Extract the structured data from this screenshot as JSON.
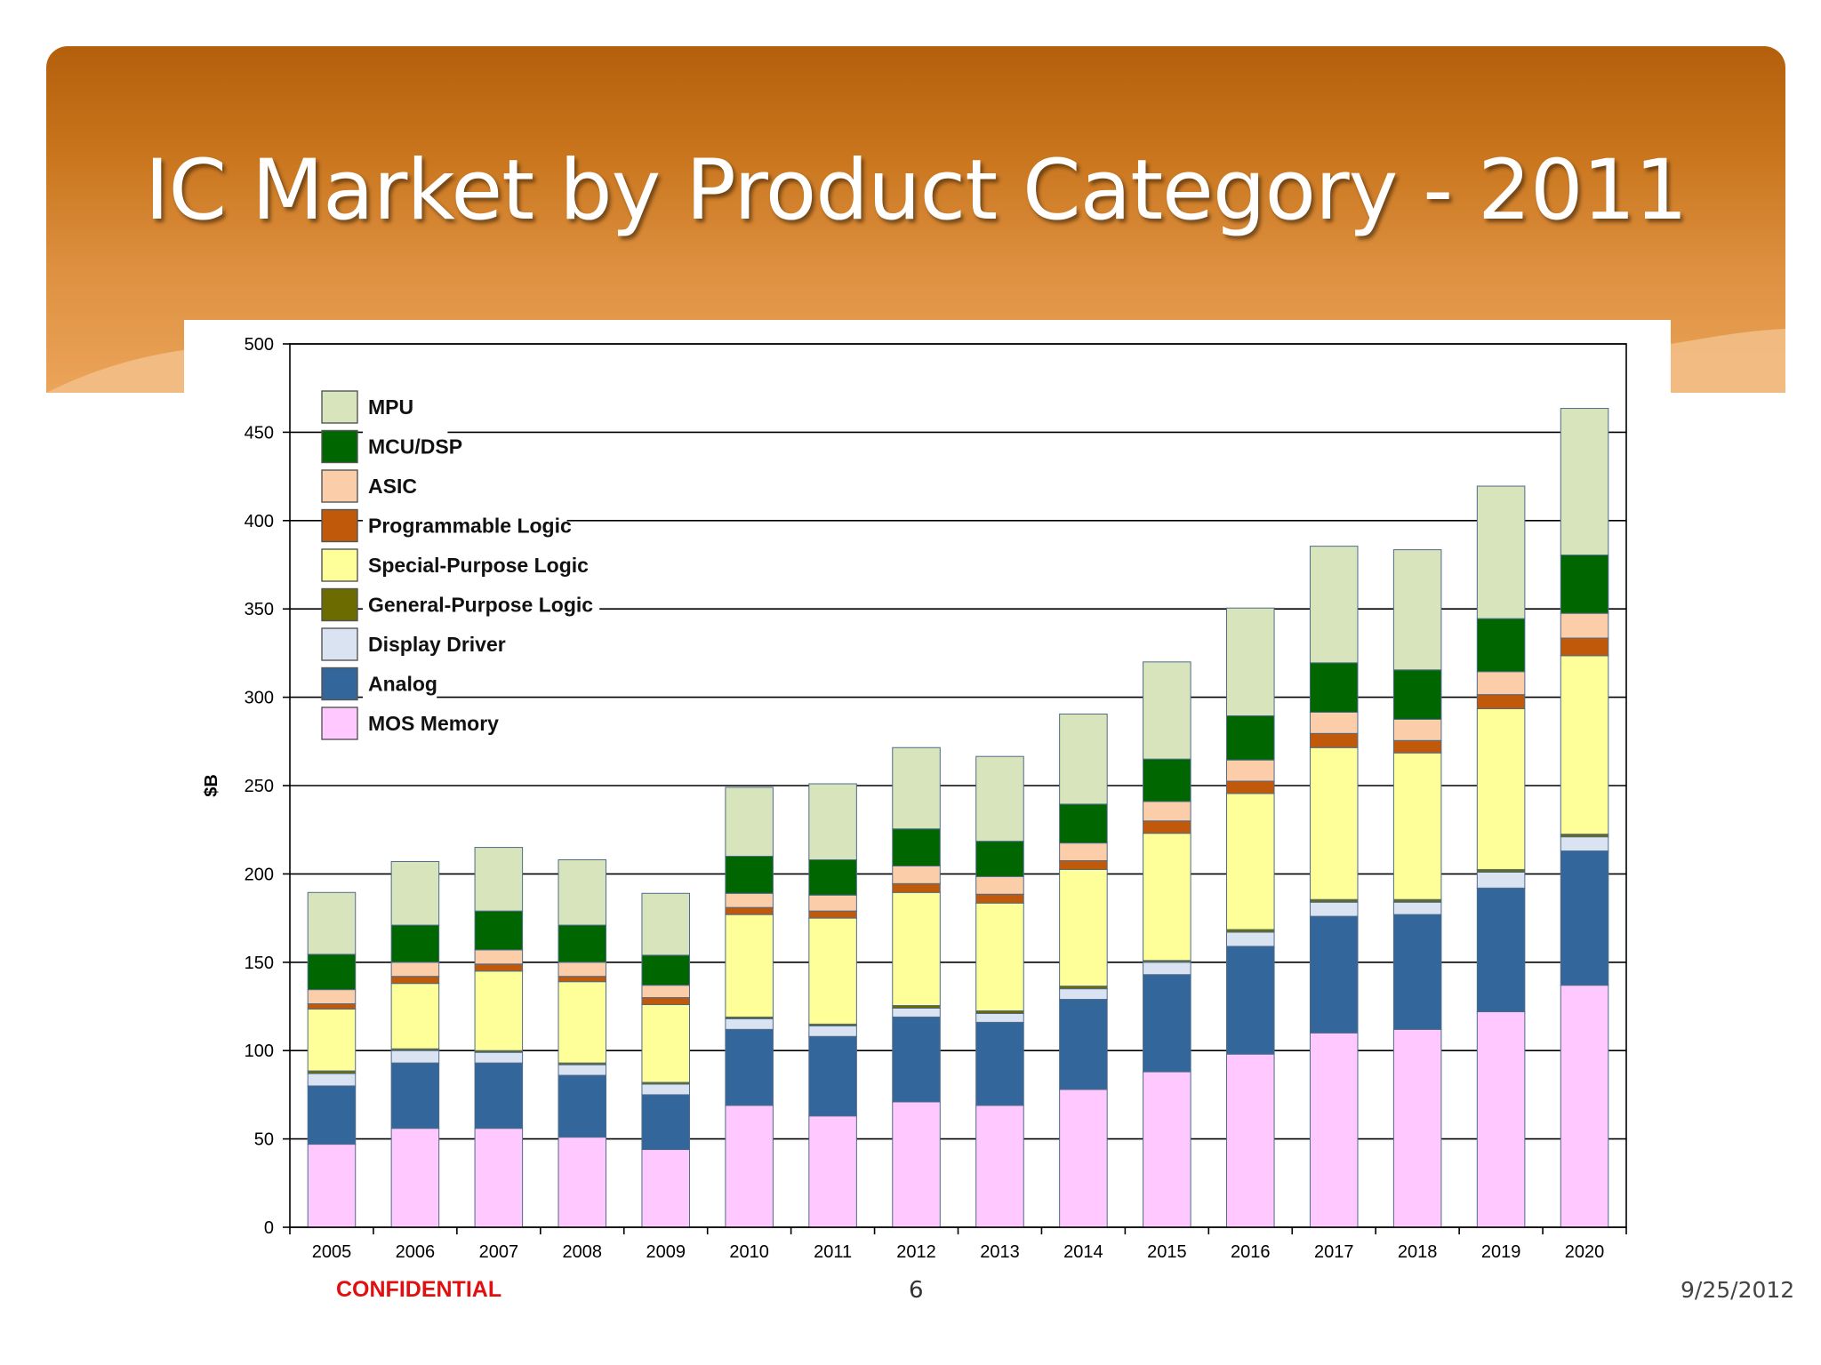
{
  "slide": {
    "title": "IC Market by Product Category - 2011",
    "footer_left": "CONFIDENTIAL",
    "page_number": "6",
    "date": "9/25/2012"
  },
  "colors": {
    "banner_top": "#b45f0c",
    "banner_bottom": "#eba45a",
    "confidential": "#e01010"
  },
  "chart_data": {
    "type": "bar",
    "stacked": true,
    "title": "",
    "xlabel": "",
    "ylabel": "$B",
    "ylim": [
      0,
      500
    ],
    "yticks": [
      0,
      50,
      100,
      150,
      200,
      250,
      300,
      350,
      400,
      450,
      500
    ],
    "grid": "horizontal",
    "legend_position": "top-left",
    "categories": [
      "2005",
      "2006",
      "2007",
      "2008",
      "2009",
      "2010",
      "2011",
      "2012",
      "2013",
      "2014",
      "2015",
      "2016",
      "2017",
      "2018",
      "2019",
      "2020"
    ],
    "series": [
      {
        "name": "MOS Memory",
        "color": "#ffc8ff",
        "values": [
          47,
          56,
          56,
          51,
          44,
          69,
          63,
          71,
          69,
          78,
          88,
          98,
          110,
          112,
          122,
          137
        ]
      },
      {
        "name": "Analog",
        "color": "#33669b",
        "values": [
          33,
          37,
          37,
          35,
          31,
          43,
          45,
          48,
          47,
          51,
          55,
          61,
          66,
          65,
          70,
          76
        ]
      },
      {
        "name": "Display Driver",
        "color": "#d9e3f1",
        "values": [
          7,
          7,
          6,
          6,
          6,
          6,
          6,
          5,
          5,
          6,
          7,
          8,
          8,
          7,
          9,
          8
        ]
      },
      {
        "name": "General-Purpose Logic",
        "color": "#6b6b00",
        "values": [
          1.5,
          1,
          1,
          1,
          1,
          1,
          1,
          1.5,
          1.5,
          1.5,
          1,
          1.5,
          1.5,
          1.5,
          1.5,
          1.5
        ]
      },
      {
        "name": "Special-Purpose Logic",
        "color": "#ffff99",
        "values": [
          35,
          37,
          45,
          46,
          44,
          58,
          60,
          64,
          61,
          66,
          72,
          77,
          86,
          83,
          91,
          101
        ]
      },
      {
        "name": "Programmable Logic",
        "color": "#c05a0a",
        "values": [
          3,
          4,
          4,
          3,
          4,
          4,
          4,
          5,
          5,
          5,
          7,
          7,
          8,
          7,
          8,
          10
        ]
      },
      {
        "name": "ASIC",
        "color": "#fbcda8",
        "values": [
          8,
          8,
          8,
          8,
          7,
          8,
          9,
          10,
          10,
          10,
          11,
          12,
          12,
          12,
          13,
          14
        ]
      },
      {
        "name": "MCU/DSP",
        "color": "#006600",
        "values": [
          20,
          21,
          22,
          21,
          17,
          21,
          20,
          21,
          20,
          22,
          24,
          25,
          28,
          28,
          30,
          33
        ]
      },
      {
        "name": "MPU",
        "color": "#d8e4bc",
        "values": [
          35,
          36,
          36,
          37,
          35,
          39,
          43,
          46,
          48,
          51,
          55,
          61,
          66,
          68,
          75,
          83
        ]
      }
    ]
  }
}
